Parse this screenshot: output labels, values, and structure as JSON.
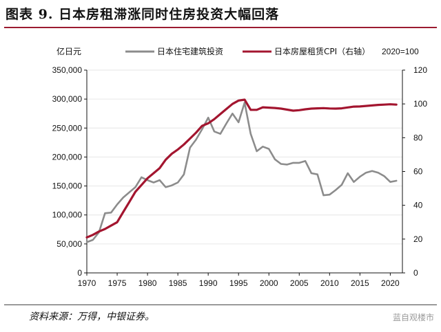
{
  "header": {
    "title": "图表 9. 日本房租滞涨同时住房投资大幅回落"
  },
  "footer": {
    "source": "资料来源：万得，中银证券。",
    "watermark": "蓝自观楼市"
  },
  "chart_data": {
    "type": "line",
    "y_left_unit": "亿日元",
    "y_right_note": "2020=100",
    "xlim": [
      1970,
      2022
    ],
    "ylim_left": [
      0,
      350000
    ],
    "ylim_right": [
      0,
      120
    ],
    "x_ticks": [
      1970,
      1975,
      1980,
      1985,
      1990,
      1995,
      2000,
      2005,
      2010,
      2015,
      2020
    ],
    "x_tick_labels": [
      "1970",
      "1975",
      "1980",
      "1985",
      "1990",
      "1995",
      "2000",
      "2005",
      "2010",
      "2015",
      "2020"
    ],
    "y_left_ticks": [
      0,
      50000,
      100000,
      150000,
      200000,
      250000,
      300000,
      350000
    ],
    "y_left_tick_labels": [
      "0",
      "50,000",
      "100,000",
      "150,000",
      "200,000",
      "250,000",
      "300,000",
      "350,000"
    ],
    "y_right_ticks": [
      0,
      20,
      40,
      60,
      80,
      100,
      120
    ],
    "y_right_tick_labels": [
      "0",
      "20",
      "40",
      "60",
      "80",
      "100",
      "120"
    ],
    "legend_position": "top",
    "series": [
      {
        "name": "日本住宅建筑投资",
        "axis": "left",
        "color": "#8c8c8c",
        "x": [
          1970,
          1971,
          1972,
          1973,
          1974,
          1975,
          1976,
          1977,
          1978,
          1979,
          1980,
          1981,
          1982,
          1983,
          1984,
          1985,
          1986,
          1987,
          1988,
          1989,
          1990,
          1991,
          1992,
          1993,
          1994,
          1995,
          1996,
          1997,
          1998,
          1999,
          2000,
          2001,
          2002,
          2003,
          2004,
          2005,
          2006,
          2007,
          2008,
          2009,
          2010,
          2011,
          2012,
          2013,
          2014,
          2015,
          2016,
          2017,
          2018,
          2019,
          2020,
          2021
        ],
        "values": [
          53000,
          57000,
          70000,
          103000,
          104000,
          118000,
          130000,
          139000,
          148000,
          165000,
          160000,
          156000,
          160000,
          148000,
          151000,
          156000,
          170000,
          216000,
          230000,
          248000,
          268000,
          244000,
          240000,
          258000,
          275000,
          260000,
          294000,
          240000,
          210000,
          218000,
          214000,
          196000,
          188000,
          187000,
          190000,
          190000,
          193000,
          172000,
          170000,
          134000,
          135000,
          143000,
          152000,
          172000,
          157000,
          166000,
          173000,
          176000,
          173000,
          167000,
          157000,
          159000
        ]
      },
      {
        "name": "日本房屋租赁CPI（右轴）",
        "axis": "right",
        "color": "#a3152f",
        "x": [
          1970,
          1971,
          1972,
          1973,
          1974,
          1975,
          1976,
          1977,
          1978,
          1979,
          1980,
          1981,
          1982,
          1983,
          1984,
          1985,
          1986,
          1987,
          1988,
          1989,
          1990,
          1991,
          1992,
          1993,
          1994,
          1995,
          1996,
          1997,
          1998,
          1999,
          2000,
          2001,
          2002,
          2003,
          2004,
          2005,
          2006,
          2007,
          2008,
          2009,
          2010,
          2011,
          2012,
          2013,
          2014,
          2015,
          2016,
          2017,
          2018,
          2019,
          2020,
          2021
        ],
        "values": [
          21,
          22.5,
          24.5,
          26,
          28,
          30,
          36,
          42,
          48,
          52,
          56,
          59,
          62,
          67,
          70.5,
          73,
          76,
          79.5,
          83,
          87,
          88.5,
          91,
          94,
          97,
          100,
          102,
          102.5,
          96.5,
          96.5,
          98,
          97.8,
          97.6,
          97.2,
          96.6,
          96,
          96.3,
          96.8,
          97.2,
          97.4,
          97.5,
          97.3,
          97.2,
          97.4,
          97.9,
          98.4,
          98.5,
          98.8,
          99.1,
          99.4,
          99.6,
          99.8,
          99.6
        ]
      }
    ]
  }
}
